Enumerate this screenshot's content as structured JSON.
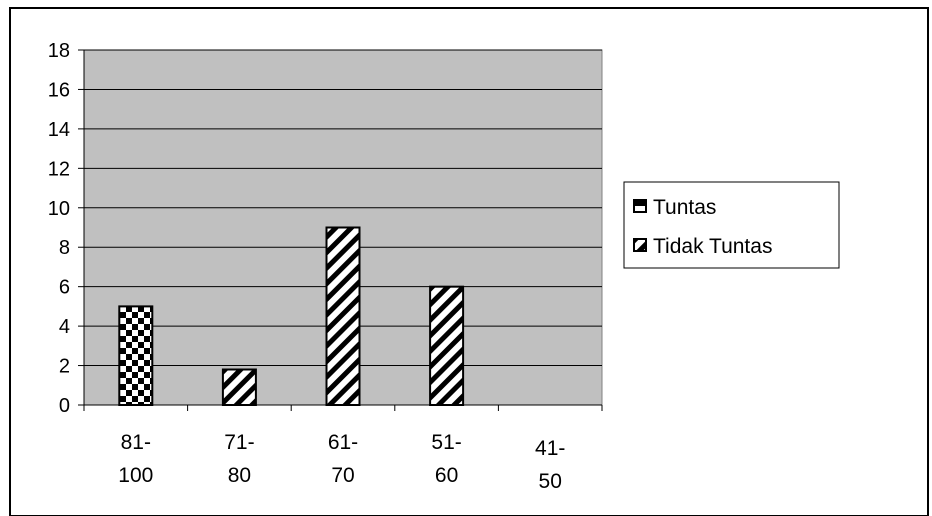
{
  "chart_data": {
    "type": "bar",
    "categories": [
      [
        "81-",
        "100"
      ],
      [
        "71-",
        "80"
      ],
      [
        "61-",
        "70"
      ],
      [
        "51-",
        "60"
      ],
      [
        "41-",
        "50"
      ]
    ],
    "series": [
      {
        "name": "Tuntas",
        "values": [
          5,
          0,
          0,
          0,
          0
        ]
      },
      {
        "name": "Tidak Tuntas",
        "values": [
          0,
          1.8,
          9,
          6,
          0
        ]
      }
    ],
    "ylim": [
      0,
      18
    ],
    "yticks": [
      "0",
      "2",
      "4",
      "6",
      "8",
      "10",
      "12",
      "14",
      "16",
      "18"
    ],
    "grid": true,
    "legend_position": "right",
    "colors": {
      "plot_background": "#c0c0c0",
      "gridline": "#000000",
      "bar_stroke": "#000000"
    }
  }
}
